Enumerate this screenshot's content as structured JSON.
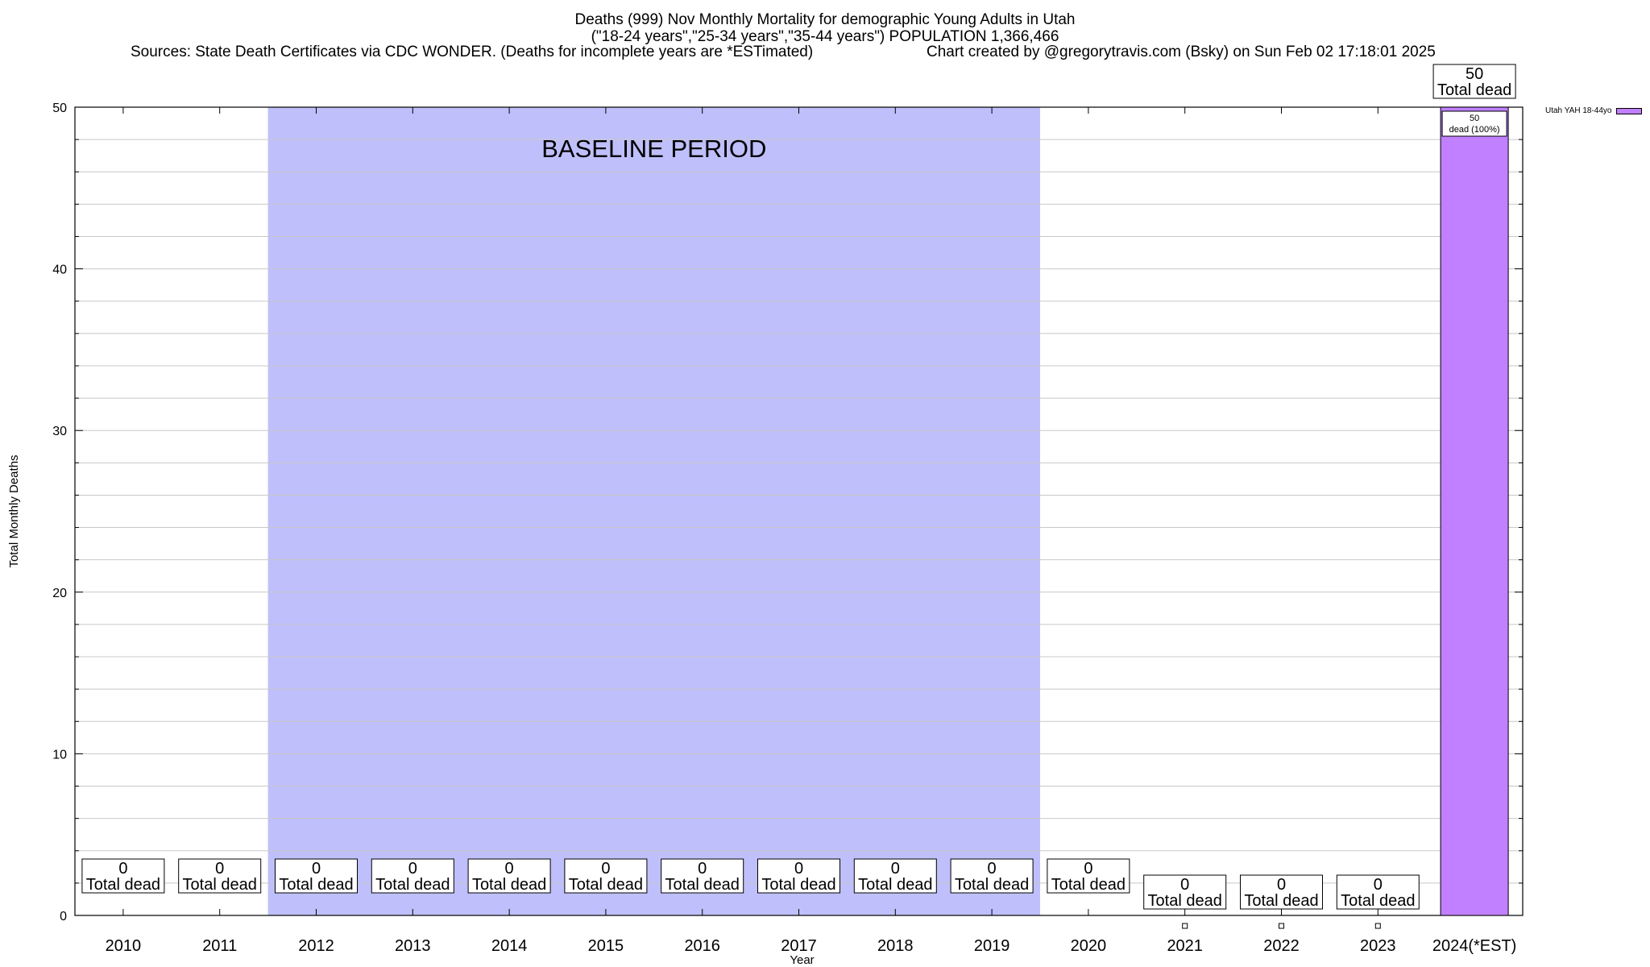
{
  "title": {
    "line1": "Deaths (999) Nov Monthly Mortality for demographic Young Adults in Utah",
    "line2": "(\"18-24 years\",\"25-34 years\",\"35-44 years\") POPULATION 1,366,466",
    "sources": "Sources: State Death Certificates via CDC WONDER. (Deaths for incomplete years are *ESTimated)",
    "credit": "Chart created by @gregorytravis.com (Bsky) on Sun Feb 02 17:18:01 2025"
  },
  "colors": {
    "baseline_band": "#bfbffb",
    "bar_fill": "#c080ff",
    "grid": "#c8c8c8",
    "axis": "#000000"
  },
  "chart_data": {
    "type": "bar",
    "xlabel": "Year",
    "ylabel": "Total Monthly Deaths",
    "ylim": [
      0,
      50
    ],
    "yticks": [
      0,
      10,
      20,
      30,
      40,
      50
    ],
    "grid": true,
    "legend_position": "top-right",
    "categories": [
      "2010",
      "2011",
      "2012",
      "2013",
      "2014",
      "2015",
      "2016",
      "2017",
      "2018",
      "2019",
      "2020",
      "2021",
      "2022",
      "2023",
      "2024(*EST)"
    ],
    "series": [
      {
        "name": "Utah YAH 18-44yo",
        "values": [
          0,
          0,
          0,
          0,
          0,
          0,
          0,
          0,
          0,
          0,
          0,
          0,
          0,
          0,
          50
        ]
      }
    ],
    "total_labels": [
      "0",
      "0",
      "0",
      "0",
      "0",
      "0",
      "0",
      "0",
      "0",
      "0",
      "0",
      "0",
      "0",
      "0",
      "50"
    ],
    "total_label_suffix": "Total dead",
    "bar_inner_label": {
      "category": "2024(*EST)",
      "line1": "50",
      "line2": "dead (100%)"
    },
    "baseline_period": {
      "label": "BASELINE PERIOD",
      "from": "2012",
      "to": "2019"
    }
  }
}
